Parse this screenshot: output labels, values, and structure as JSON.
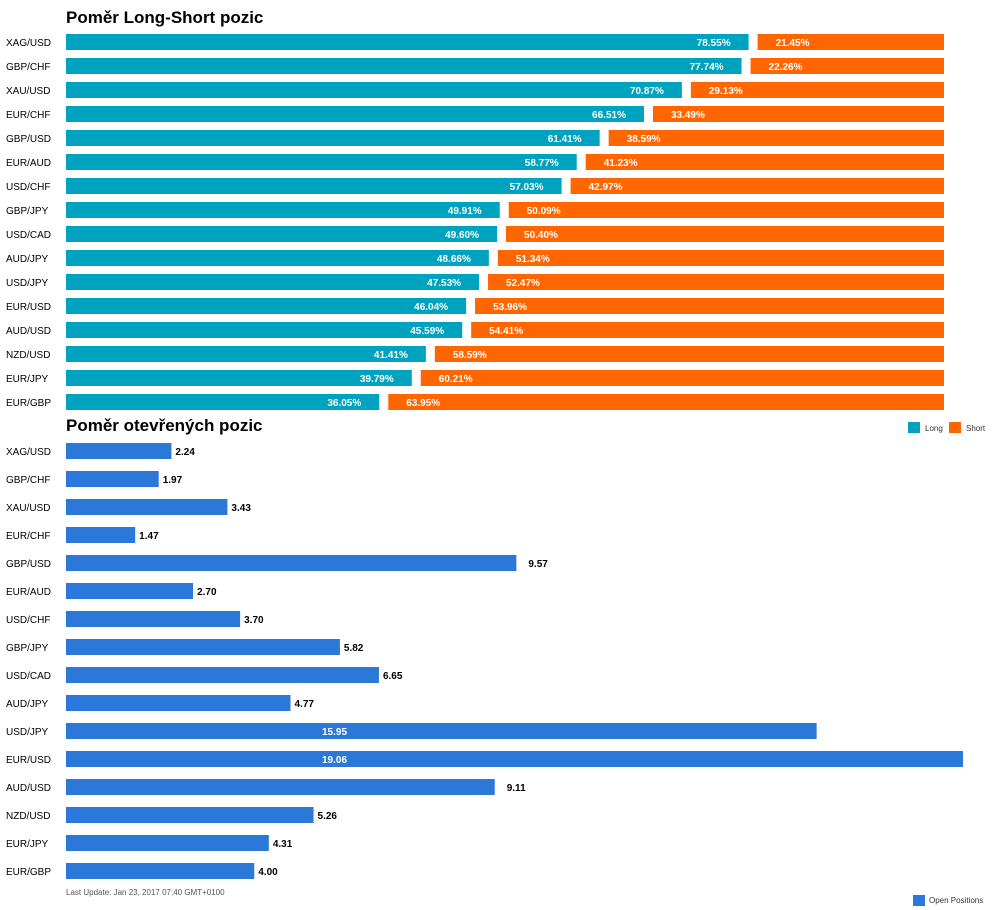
{
  "chart_data": [
    {
      "type": "bar",
      "title": "Poměr Long-Short pozic",
      "categories": [
        "XAG/USD",
        "GBP/CHF",
        "XAU/USD",
        "EUR/CHF",
        "GBP/USD",
        "EUR/AUD",
        "USD/CHF",
        "GBP/JPY",
        "USD/CAD",
        "AUD/JPY",
        "USD/JPY",
        "EUR/USD",
        "AUD/USD",
        "NZD/USD",
        "EUR/JPY",
        "EUR/GBP"
      ],
      "series": [
        {
          "name": "Long",
          "color": "#00a3bf",
          "values": [
            78.55,
            77.74,
            70.87,
            66.51,
            61.41,
            58.77,
            57.03,
            49.91,
            49.6,
            48.66,
            47.53,
            46.04,
            45.59,
            41.41,
            39.79,
            36.05
          ]
        },
        {
          "name": "Short",
          "color": "#ff6600",
          "values": [
            21.45,
            22.26,
            29.13,
            33.49,
            38.59,
            41.23,
            42.97,
            50.09,
            50.4,
            51.34,
            52.47,
            53.96,
            54.41,
            58.59,
            60.21,
            63.95
          ]
        }
      ],
      "legend_position": "bottom-right"
    },
    {
      "type": "bar",
      "title": "Poměr otevřených pozic",
      "categories": [
        "XAG/USD",
        "GBP/CHF",
        "XAU/USD",
        "EUR/CHF",
        "GBP/USD",
        "EUR/AUD",
        "USD/CHF",
        "GBP/JPY",
        "USD/CAD",
        "AUD/JPY",
        "USD/JPY",
        "EUR/USD",
        "AUD/USD",
        "NZD/USD",
        "EUR/JPY",
        "EUR/GBP"
      ],
      "series": [
        {
          "name": "Open Positions",
          "color": "#2c78d8",
          "values": [
            2.24,
            1.97,
            3.43,
            1.47,
            9.57,
            2.7,
            3.7,
            5.82,
            6.65,
            4.77,
            15.95,
            19.06,
            9.11,
            5.26,
            4.31,
            4.0
          ]
        }
      ],
      "legend_position": "bottom-right"
    }
  ],
  "footer": "Last Update: Jan 23, 2017 07:40 GMT+0100"
}
